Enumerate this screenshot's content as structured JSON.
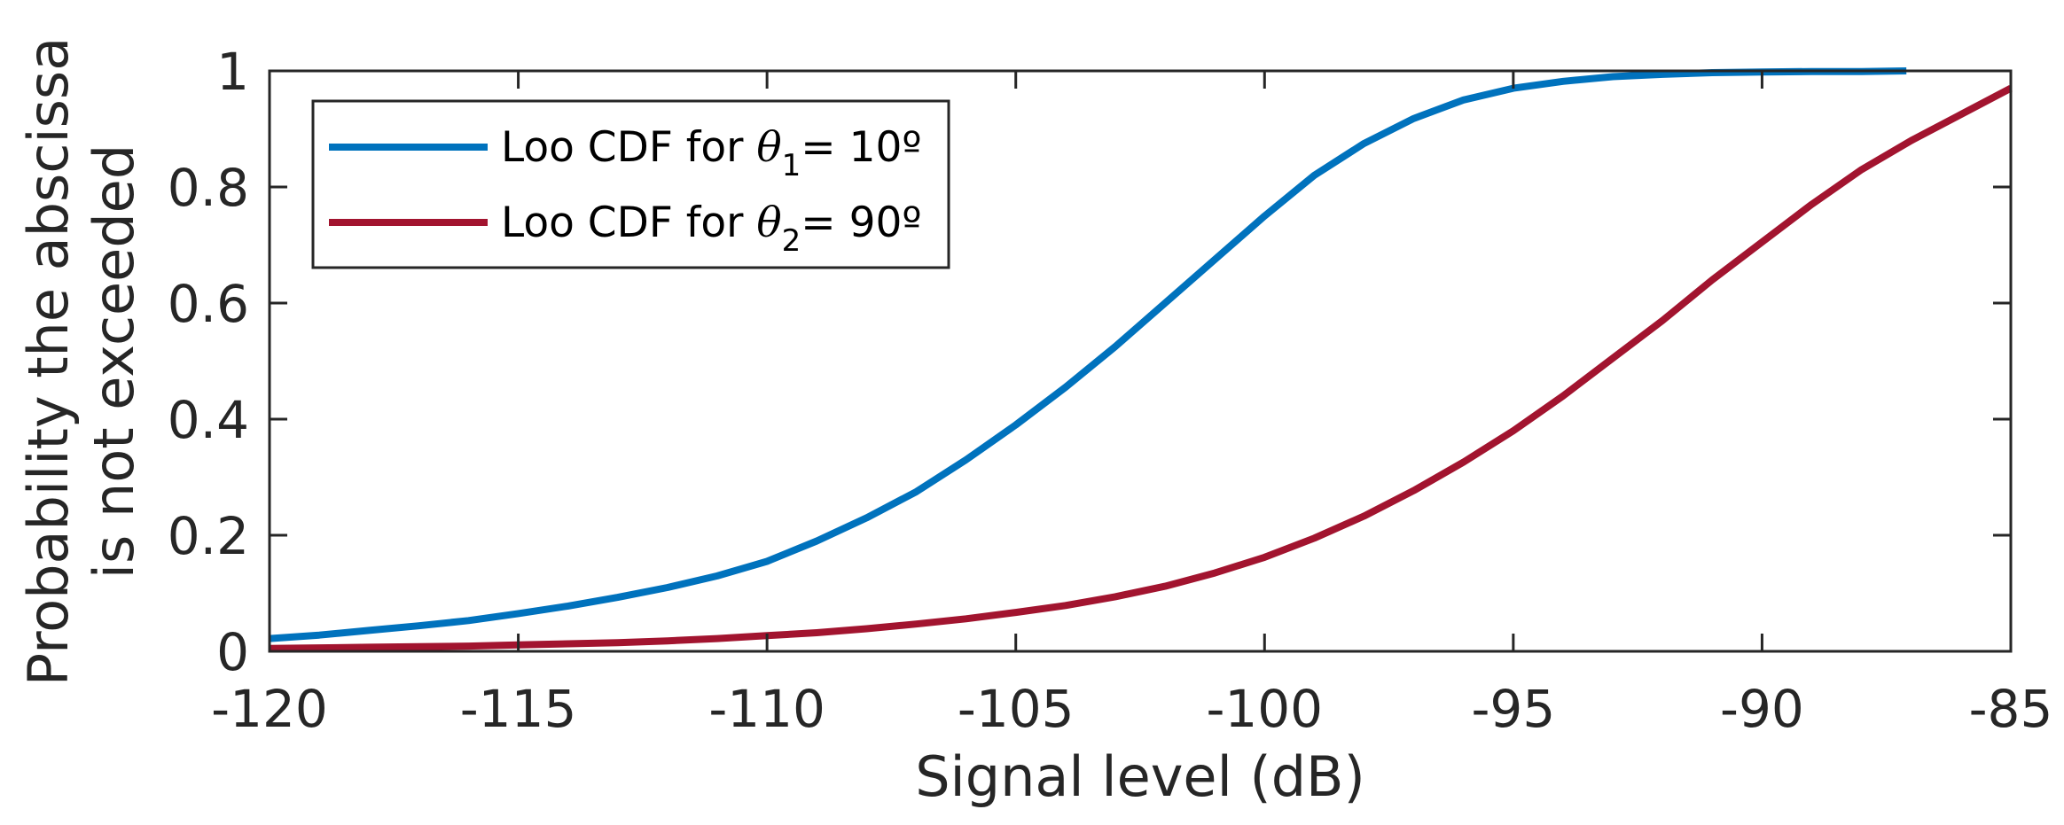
{
  "chart_data": {
    "type": "line",
    "title": "",
    "xlabel": "Signal level (dB)",
    "ylabel": [
      "Probability the abscissa",
      "is not exceeded"
    ],
    "xlim": [
      -120,
      -85
    ],
    "ylim": [
      0,
      1
    ],
    "xticks": [
      -120,
      -115,
      -110,
      -105,
      -100,
      -95,
      -90,
      -85
    ],
    "yticks": [
      0,
      0.2,
      0.4,
      0.6,
      0.8,
      1
    ],
    "xtick_labels": [
      "-120",
      "-115",
      "-110",
      "-105",
      "-100",
      "-95",
      "-90",
      "-85"
    ],
    "ytick_labels": [
      "0",
      "0.2",
      "0.4",
      "0.6",
      "0.8",
      "1"
    ],
    "grid": false,
    "legend_position": "top-left",
    "series": [
      {
        "name": "Loo CDF for θ1= 10º",
        "legend": {
          "prefix": "Loo CDF for ",
          "symbol": "θ",
          "subscript": "1",
          "suffix": "= 10º"
        },
        "color": "#0072BD",
        "x": [
          -120,
          -119,
          -118,
          -117,
          -116,
          -115,
          -114,
          -113,
          -112,
          -111,
          -110,
          -109,
          -108,
          -107,
          -106,
          -105,
          -104,
          -103,
          -102,
          -101,
          -100,
          -99,
          -98,
          -97,
          -96,
          -95,
          -94,
          -93,
          -92,
          -91,
          -90,
          -89,
          -88,
          -87.1
        ],
        "y": [
          0.022,
          0.028,
          0.036,
          0.044,
          0.053,
          0.065,
          0.078,
          0.093,
          0.11,
          0.13,
          0.155,
          0.19,
          0.23,
          0.275,
          0.33,
          0.39,
          0.455,
          0.525,
          0.6,
          0.675,
          0.75,
          0.82,
          0.875,
          0.918,
          0.95,
          0.97,
          0.982,
          0.99,
          0.994,
          0.997,
          0.998,
          0.999,
          0.999,
          1.0
        ]
      },
      {
        "name": "Loo CDF for θ2= 90º",
        "legend": {
          "prefix": "Loo CDF for ",
          "symbol": "θ",
          "subscript": "2",
          "suffix": "= 90º"
        },
        "color": "#A2142F",
        "x": [
          -120,
          -119,
          -118,
          -117,
          -116,
          -115,
          -114,
          -113,
          -112,
          -111,
          -110,
          -109,
          -108,
          -107,
          -106,
          -105,
          -104,
          -103,
          -102,
          -101,
          -100,
          -99,
          -98,
          -97,
          -96,
          -95,
          -94,
          -93,
          -92,
          -91,
          -90,
          -89,
          -88,
          -87,
          -86,
          -85
        ],
        "y": [
          0.005,
          0.006,
          0.007,
          0.008,
          0.009,
          0.011,
          0.013,
          0.015,
          0.018,
          0.022,
          0.027,
          0.032,
          0.039,
          0.047,
          0.056,
          0.067,
          0.079,
          0.094,
          0.112,
          0.135,
          0.162,
          0.195,
          0.233,
          0.277,
          0.326,
          0.38,
          0.44,
          0.505,
          0.57,
          0.64,
          0.705,
          0.77,
          0.83,
          0.88,
          0.925,
          0.97
        ]
      }
    ]
  }
}
